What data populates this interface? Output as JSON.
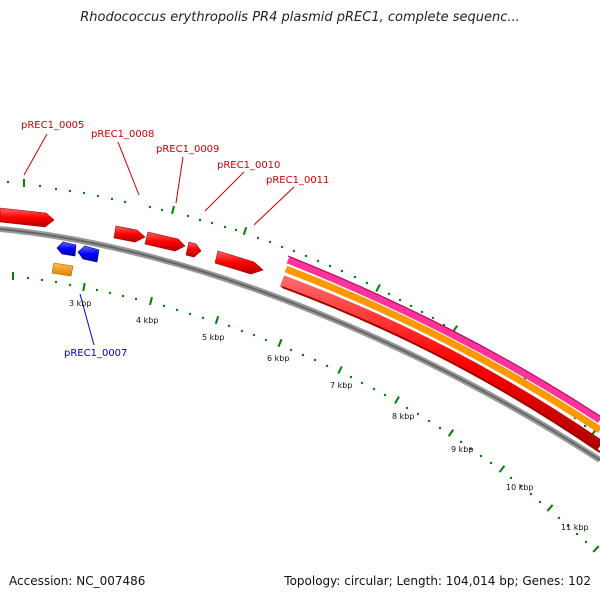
{
  "header": {
    "title": "Rhodococcus erythropolis PR4 plasmid pREC1, complete sequenc..."
  },
  "footer": {
    "accession": "Accession: NC_007486",
    "summary": "Topology: circular; Length: 104,014 bp; Genes: 102"
  },
  "gene_labels": {
    "g0005": "pREC1_0005",
    "g0007": "pREC1_0007",
    "g0008": "pREC1_0008",
    "g0009": "pREC1_0009",
    "g0010": "pREC1_0010",
    "g0011": "pREC1_0011"
  },
  "ticks": {
    "t3": "3 kbp",
    "t4": "4 kbp",
    "t5": "5 kbp",
    "t6": "6 kbp",
    "t7": "7 kbp",
    "t8": "8 kbp",
    "t9": "9 kbp",
    "t10": "10 kbp",
    "t11": "11 kbp"
  },
  "colors": {
    "forward_gene": "#ff0000",
    "reverse_gene": "#0000ff",
    "orange_feature": "#ff9900",
    "pink_feature": "#ff3399",
    "backbone": "#777777",
    "tick": "#008000",
    "label_forward": "#cc0000",
    "label_reverse": "#0000cc"
  }
}
